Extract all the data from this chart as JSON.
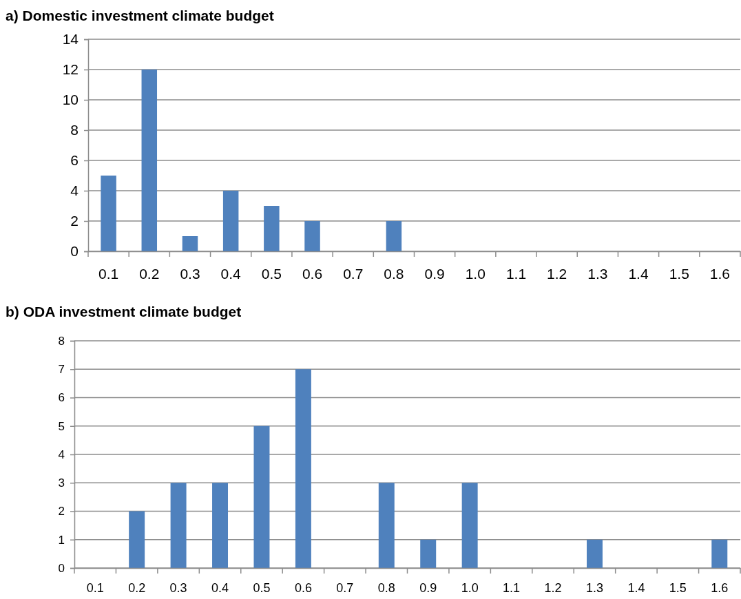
{
  "chart_data": [
    {
      "type": "bar",
      "title": "a)    Domestic investment climate budget",
      "categories": [
        "0.1",
        "0.2",
        "0.3",
        "0.4",
        "0.5",
        "0.6",
        "0.7",
        "0.8",
        "0.9",
        "1.0",
        "1.1",
        "1.2",
        "1.3",
        "1.4",
        "1.5",
        "1.6"
      ],
      "series": [
        {
          "color": "#4f81bd",
          "values": [
            5,
            12,
            1,
            4,
            3,
            2,
            0,
            2,
            0,
            0,
            0,
            0,
            0,
            0,
            0,
            0
          ]
        }
      ],
      "ylim": [
        0,
        14
      ],
      "yticks": [
        0,
        2,
        4,
        6,
        8,
        10,
        12,
        14
      ],
      "grid": "y",
      "legend": false
    },
    {
      "type": "bar",
      "title": "b)    ODA investment climate budget",
      "categories": [
        "0.1",
        "0.2",
        "0.3",
        "0.4",
        "0.5",
        "0.6",
        "0.7",
        "0.8",
        "0.9",
        "1.0",
        "1.1",
        "1.2",
        "1.3",
        "1.4",
        "1.5",
        "1.6"
      ],
      "series": [
        {
          "color": "#4f81bd",
          "values": [
            0,
            2,
            3,
            3,
            5,
            7,
            0,
            3,
            1,
            3,
            0,
            0,
            1,
            0,
            0,
            1
          ]
        }
      ],
      "ylim": [
        0,
        8
      ],
      "yticks": [
        0,
        1,
        2,
        3,
        4,
        5,
        6,
        7,
        8
      ],
      "grid": "y",
      "legend": false
    }
  ]
}
